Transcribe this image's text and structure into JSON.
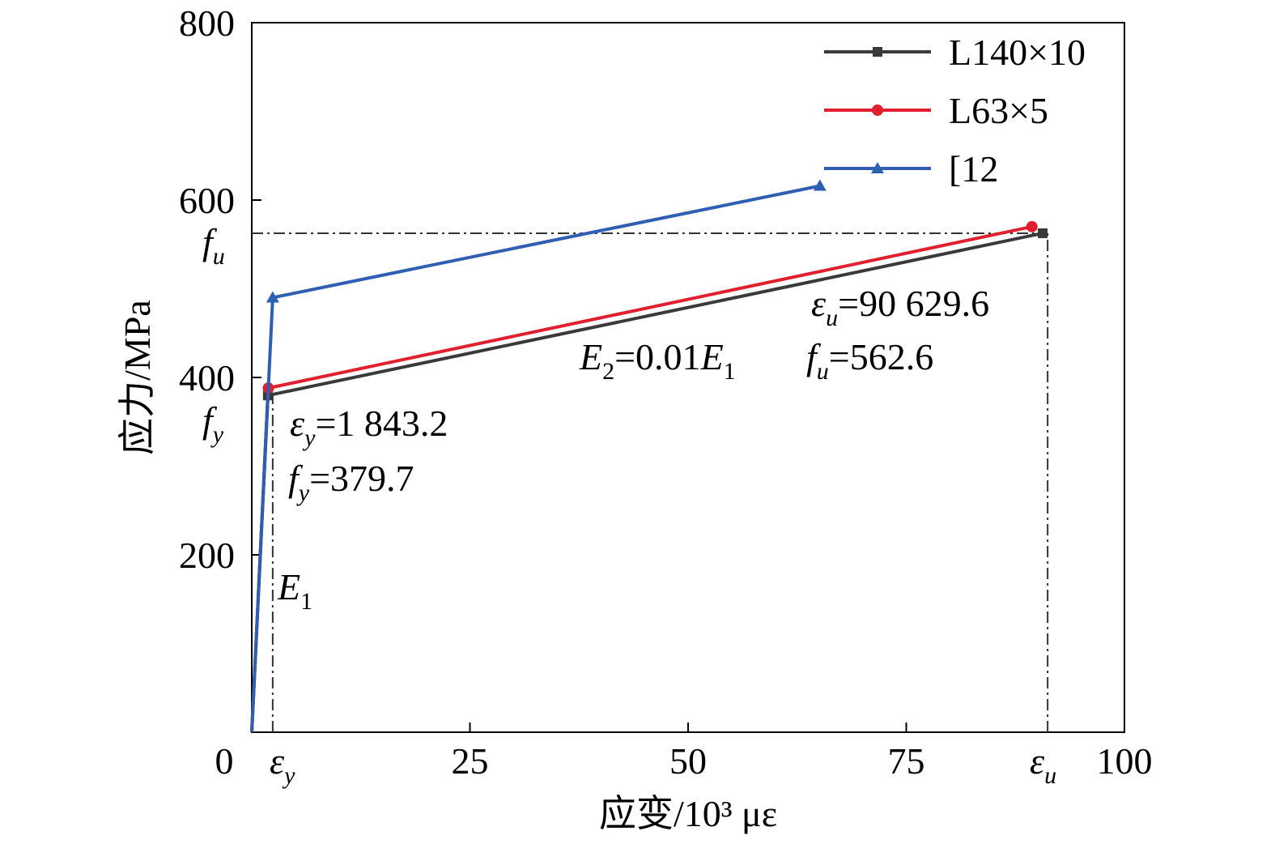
{
  "chart_data": {
    "type": "line",
    "xlabel": "应变/10³ με",
    "ylabel": "应力/MPa",
    "xlim": [
      0,
      100
    ],
    "ylim": [
      0,
      800
    ],
    "x_ticks": [
      0,
      25,
      50,
      75,
      100
    ],
    "y_ticks": [
      200,
      400,
      600,
      800
    ],
    "grid": false,
    "legend_position": "top-right",
    "series": [
      {
        "name": "L140×10",
        "color": "#3a3a3a",
        "marker": "square",
        "x": [
          0,
          1.8432,
          90.6296
        ],
        "y": [
          0,
          379.7,
          562.6
        ]
      },
      {
        "name": "L63×5",
        "color": "#e0202e",
        "marker": "circle",
        "x": [
          0,
          1.9,
          89.4
        ],
        "y": [
          0,
          388,
          570
        ]
      },
      {
        "name": "[12",
        "color": "#2f5fb3",
        "marker": "triangle",
        "x": [
          0,
          2.4,
          65.1
        ],
        "y": [
          0,
          490,
          616
        ]
      }
    ],
    "reference_lines": {
      "eps_y": 2.4,
      "eps_u": 91.2,
      "f_u": 562.6
    },
    "axis_symbols": {
      "eps_y": {
        "base": "ε",
        "sub": "y"
      },
      "eps_u": {
        "base": "ε",
        "sub": "u"
      },
      "f_u": {
        "base": "f",
        "sub": "u"
      },
      "f_y": {
        "base": "f",
        "sub": "y"
      }
    },
    "annotations": {
      "eps_y": {
        "sym": "ε",
        "sub": "y",
        "value": "=1 843.2"
      },
      "f_y": {
        "sym": "f",
        "sub": "y",
        "value": "=379.7"
      },
      "e1": {
        "sym": "E",
        "sub": "1"
      },
      "e2": {
        "sym": "E",
        "sub": "2",
        "mid": "=0.01",
        "sym2": "E",
        "sub2": "1"
      },
      "eps_u": {
        "sym": "ε",
        "sub": "u",
        "value": "=90 629.6"
      },
      "f_u": {
        "sym": "f",
        "sub": "u",
        "value": "=562.6"
      }
    }
  }
}
